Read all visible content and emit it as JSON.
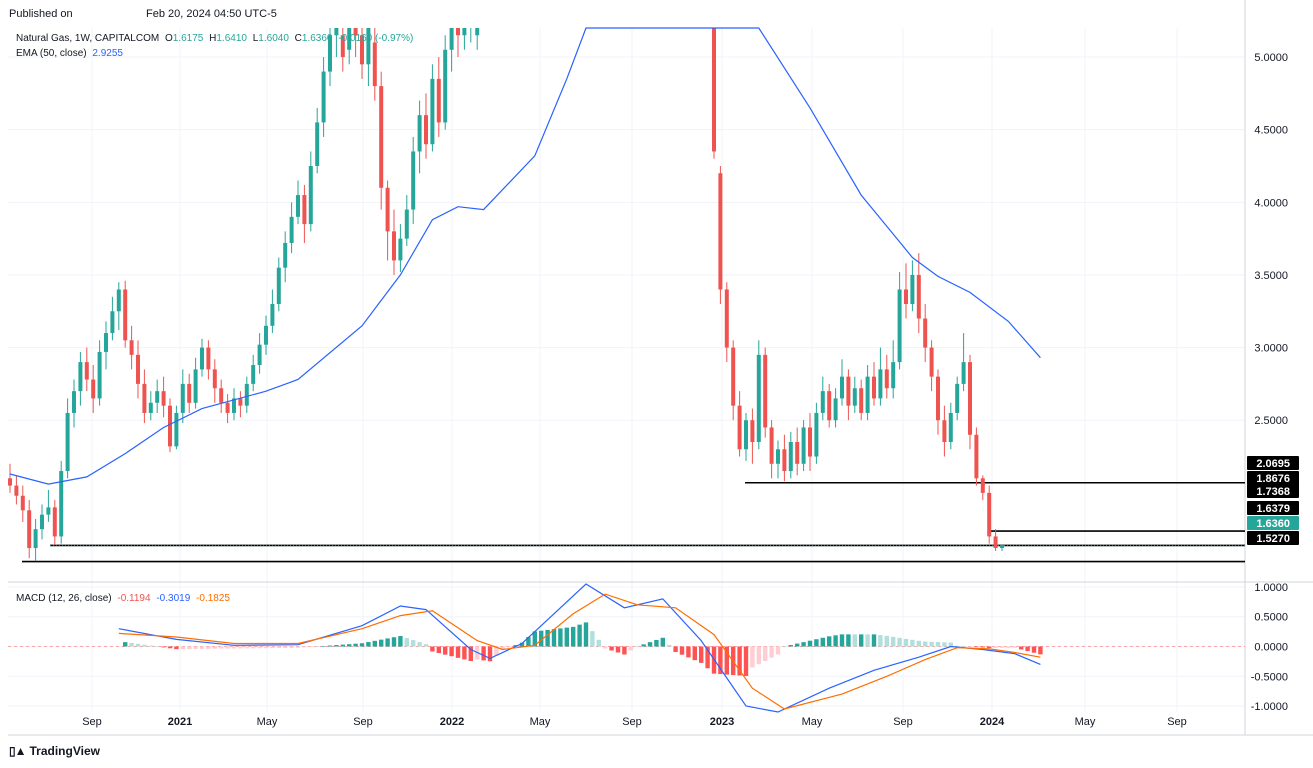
{
  "header": {
    "published_label": "Published on",
    "published_date": "Feb 20, 2024 04:50 UTC-5"
  },
  "legend": {
    "symbol": "Natural Gas, 1W, CAPITALCOM",
    "ohlc": {
      "O": "1.6175",
      "H": "1.6410",
      "L": "1.6040",
      "C": "1.6360",
      "chg": "-0.0160 (-0.97%)"
    },
    "ema_label": "EMA (50, close)",
    "ema_value": "2.9255",
    "macd_label": "MACD (12, 26, close)",
    "macd_hist": "-0.1194",
    "macd_line": "-0.3019",
    "macd_signal": "-0.1825"
  },
  "colors": {
    "up": "#26a69a",
    "down": "#ef5350",
    "ema": "#2962ff",
    "macd": "#2962ff",
    "signal": "#ff6d00",
    "hist_up_strong": "#26a69a",
    "hist_up_weak": "#b2dfdb",
    "hist_down_strong": "#ff5252",
    "hist_down_weak": "#ffcdd2"
  },
  "branding": {
    "name": "TradingView"
  },
  "chart_data": {
    "type": "candlestick",
    "title": "Natural Gas, 1W, CAPITALCOM",
    "price_axis_ticks": [
      "5.0000",
      "4.5000",
      "4.0000",
      "3.5000",
      "3.0000",
      "2.5000"
    ],
    "macd_axis_ticks": [
      "1.0000",
      "0.5000",
      "0.0000",
      "-0.5000",
      "-1.0000"
    ],
    "time_axis_ticks": [
      "Sep",
      "2021",
      "May",
      "Sep",
      "2022",
      "May",
      "Sep",
      "2023",
      "May",
      "Sep",
      "2024",
      "May",
      "Sep"
    ],
    "price_range": [
      1.4,
      5.2
    ],
    "macd_range": [
      -1.1,
      1.05
    ],
    "levels": [
      {
        "label": "2.0695",
        "value": 2.0695
      },
      {
        "label": "1.7368",
        "value": 1.7368
      },
      {
        "label": "1.6379",
        "value": 1.6379
      },
      {
        "label": "1.5270",
        "value": 1.527
      }
    ],
    "price_tags": [
      {
        "label": "2.0695",
        "value": 2.0695
      },
      {
        "label": "1.8676",
        "value": 1.8676
      },
      {
        "label": "1.7368",
        "value": 1.7368
      },
      {
        "label": "1.6379",
        "value": 1.6379
      },
      {
        "label": "1.6360",
        "value": 1.636,
        "current": true
      },
      {
        "label": "1.5270",
        "value": 1.527
      }
    ],
    "ema_series": [
      [
        0,
        2.13
      ],
      [
        6,
        2.06
      ],
      [
        12,
        2.11
      ],
      [
        18,
        2.27
      ],
      [
        24,
        2.45
      ],
      [
        30,
        2.58
      ],
      [
        40,
        2.7
      ],
      [
        45,
        2.78
      ],
      [
        55,
        3.15
      ],
      [
        61,
        3.5
      ],
      [
        66,
        3.88
      ],
      [
        70,
        3.97
      ],
      [
        74,
        3.95
      ],
      [
        82,
        4.32
      ],
      [
        87,
        4.85
      ],
      [
        90,
        5.2
      ],
      [
        117,
        5.2
      ],
      [
        125,
        4.65
      ],
      [
        133,
        4.05
      ],
      [
        141,
        3.62
      ],
      [
        145,
        3.49
      ],
      [
        150,
        3.38
      ],
      [
        156,
        3.18
      ],
      [
        161,
        2.93
      ]
    ],
    "macd_series": [
      [
        17,
        0.3
      ],
      [
        26,
        0.12
      ],
      [
        35,
        0.02
      ],
      [
        45,
        0.03
      ],
      [
        55,
        0.35
      ],
      [
        61,
        0.68
      ],
      [
        65,
        0.62
      ],
      [
        72,
        -0.05
      ],
      [
        75,
        -0.2
      ],
      [
        80,
        0.05
      ],
      [
        86,
        0.65
      ],
      [
        90,
        1.05
      ],
      [
        96,
        0.65
      ],
      [
        102,
        0.8
      ],
      [
        108,
        0.1
      ],
      [
        115,
        -1.0
      ],
      [
        120,
        -1.1
      ],
      [
        128,
        -0.7
      ],
      [
        135,
        -0.4
      ],
      [
        142,
        -0.18
      ],
      [
        147,
        0.0
      ],
      [
        152,
        -0.05
      ],
      [
        157,
        -0.12
      ],
      [
        161,
        -0.3
      ]
    ],
    "signal_series": [
      [
        17,
        0.22
      ],
      [
        26,
        0.16
      ],
      [
        35,
        0.05
      ],
      [
        45,
        0.05
      ],
      [
        55,
        0.3
      ],
      [
        61,
        0.52
      ],
      [
        66,
        0.6
      ],
      [
        73,
        0.1
      ],
      [
        77,
        -0.05
      ],
      [
        82,
        0.02
      ],
      [
        88,
        0.55
      ],
      [
        93,
        0.88
      ],
      [
        98,
        0.7
      ],
      [
        104,
        0.65
      ],
      [
        110,
        0.2
      ],
      [
        116,
        -0.7
      ],
      [
        121,
        -1.05
      ],
      [
        130,
        -0.8
      ],
      [
        137,
        -0.5
      ],
      [
        143,
        -0.22
      ],
      [
        148,
        -0.02
      ],
      [
        153,
        -0.04
      ],
      [
        157,
        -0.1
      ],
      [
        161,
        -0.18
      ]
    ],
    "candles": [
      [
        2.1,
        2.05,
        2.2,
        2.0
      ],
      [
        2.05,
        1.98,
        2.12,
        1.92
      ],
      [
        1.98,
        1.88,
        2.05,
        1.8
      ],
      [
        1.88,
        1.62,
        1.95,
        1.55
      ],
      [
        1.62,
        1.75,
        1.82,
        1.53
      ],
      [
        1.75,
        1.85,
        1.92,
        1.68
      ],
      [
        1.85,
        1.9,
        2.02,
        1.8
      ],
      [
        1.9,
        1.7,
        1.95,
        1.64
      ],
      [
        1.7,
        2.15,
        2.22,
        1.65
      ],
      [
        2.15,
        2.55,
        2.65,
        2.1
      ],
      [
        2.55,
        2.7,
        2.78,
        2.45
      ],
      [
        2.7,
        2.9,
        2.97,
        2.6
      ],
      [
        2.9,
        2.78,
        3.0,
        2.7
      ],
      [
        2.78,
        2.65,
        2.88,
        2.55
      ],
      [
        2.65,
        2.97,
        3.05,
        2.6
      ],
      [
        2.97,
        3.1,
        3.18,
        2.85
      ],
      [
        3.1,
        3.25,
        3.35,
        3.05
      ],
      [
        3.25,
        3.4,
        3.45,
        3.12
      ],
      [
        3.4,
        3.05,
        3.46,
        3.0
      ],
      [
        3.05,
        2.95,
        3.15,
        2.85
      ],
      [
        2.95,
        2.75,
        3.05,
        2.65
      ],
      [
        2.75,
        2.55,
        2.85,
        2.48
      ],
      [
        2.55,
        2.62,
        2.7,
        2.5
      ],
      [
        2.62,
        2.7,
        2.78,
        2.55
      ],
      [
        2.7,
        2.6,
        2.8,
        2.52
      ],
      [
        2.6,
        2.32,
        2.65,
        2.28
      ],
      [
        2.32,
        2.55,
        2.6,
        2.3
      ],
      [
        2.55,
        2.75,
        2.85,
        2.48
      ],
      [
        2.75,
        2.62,
        2.82,
        2.55
      ],
      [
        2.62,
        2.85,
        2.93,
        2.58
      ],
      [
        2.85,
        3.0,
        3.06,
        2.8
      ],
      [
        3.0,
        2.85,
        3.05,
        2.78
      ],
      [
        2.85,
        2.72,
        2.92,
        2.62
      ],
      [
        2.72,
        2.62,
        2.78,
        2.55
      ],
      [
        2.62,
        2.55,
        2.68,
        2.48
      ],
      [
        2.55,
        2.65,
        2.72,
        2.5
      ],
      [
        2.65,
        2.6,
        2.7,
        2.52
      ],
      [
        2.6,
        2.75,
        2.8,
        2.55
      ],
      [
        2.75,
        2.88,
        2.95,
        2.7
      ],
      [
        2.88,
        3.02,
        3.1,
        2.82
      ],
      [
        3.02,
        3.15,
        3.22,
        2.95
      ],
      [
        3.15,
        3.3,
        3.4,
        3.1
      ],
      [
        3.3,
        3.55,
        3.62,
        3.25
      ],
      [
        3.55,
        3.72,
        3.8,
        3.45
      ],
      [
        3.72,
        3.9,
        4.0,
        3.65
      ],
      [
        3.9,
        4.05,
        4.15,
        3.85
      ],
      [
        4.05,
        3.85,
        4.12,
        3.72
      ],
      [
        3.85,
        4.25,
        4.35,
        3.8
      ],
      [
        4.25,
        4.55,
        4.65,
        4.2
      ],
      [
        4.55,
        4.9,
        5.0,
        4.45
      ],
      [
        4.9,
        5.15,
        5.2,
        4.8
      ],
      [
        5.15,
        5.2,
        5.2,
        5.0
      ],
      [
        5.15,
        5.0,
        5.2,
        4.9
      ],
      [
        5.05,
        5.2,
        5.2,
        4.95
      ],
      [
        5.2,
        5.15,
        5.2,
        5.0
      ],
      [
        5.15,
        4.95,
        5.2,
        4.85
      ],
      [
        4.95,
        5.2,
        5.2,
        4.8
      ],
      [
        5.1,
        4.8,
        5.2,
        4.7
      ],
      [
        4.8,
        4.1,
        4.9,
        3.95
      ],
      [
        4.1,
        3.8,
        4.15,
        3.6
      ],
      [
        3.8,
        3.6,
        3.95,
        3.5
      ],
      [
        3.6,
        3.75,
        3.85,
        3.52
      ],
      [
        3.75,
        3.95,
        4.05,
        3.7
      ],
      [
        3.95,
        4.35,
        4.45,
        3.85
      ],
      [
        4.35,
        4.6,
        4.7,
        4.2
      ],
      [
        4.6,
        4.4,
        4.75,
        4.3
      ],
      [
        4.4,
        4.85,
        4.95,
        4.35
      ],
      [
        4.85,
        4.55,
        5.0,
        4.45
      ],
      [
        4.55,
        5.05,
        5.15,
        4.5
      ],
      [
        5.05,
        5.2,
        5.2,
        4.9
      ],
      [
        5.2,
        5.15,
        5.2,
        5.0
      ],
      [
        5.15,
        5.2,
        5.2,
        5.05
      ],
      [
        5.2,
        5.2,
        5.2,
        5.1
      ],
      [
        5.15,
        5.2,
        5.2,
        5.05
      ]
    ],
    "candles_late": [
      [
        5.2,
        4.35,
        5.2,
        4.3
      ],
      [
        4.2,
        3.4,
        4.25,
        3.3
      ],
      [
        3.4,
        3.0,
        3.45,
        2.9
      ],
      [
        3.0,
        2.6,
        3.05,
        2.5
      ],
      [
        2.6,
        2.3,
        2.7,
        2.25
      ],
      [
        2.3,
        2.5,
        2.55,
        2.22
      ],
      [
        2.5,
        2.35,
        2.58,
        2.2
      ],
      [
        2.35,
        2.95,
        3.05,
        2.3
      ],
      [
        2.95,
        2.45,
        3.0,
        2.38
      ],
      [
        2.45,
        2.2,
        2.5,
        2.1
      ],
      [
        2.2,
        2.3,
        2.36,
        2.1
      ],
      [
        2.3,
        2.15,
        2.4,
        2.08
      ],
      [
        2.15,
        2.35,
        2.42,
        2.1
      ],
      [
        2.35,
        2.2,
        2.45,
        2.12
      ],
      [
        2.2,
        2.45,
        2.5,
        2.15
      ],
      [
        2.45,
        2.25,
        2.55,
        2.15
      ],
      [
        2.25,
        2.55,
        2.62,
        2.2
      ],
      [
        2.55,
        2.7,
        2.8,
        2.5
      ],
      [
        2.7,
        2.5,
        2.75,
        2.45
      ],
      [
        2.5,
        2.65,
        2.72,
        2.45
      ],
      [
        2.65,
        2.8,
        2.92,
        2.6
      ],
      [
        2.8,
        2.6,
        2.85,
        2.5
      ],
      [
        2.6,
        2.72,
        2.8,
        2.55
      ],
      [
        2.72,
        2.55,
        2.78,
        2.5
      ],
      [
        2.55,
        2.8,
        2.88,
        2.5
      ],
      [
        2.8,
        2.65,
        2.9,
        2.6
      ],
      [
        2.65,
        2.85,
        3.0,
        2.6
      ],
      [
        2.85,
        2.72,
        2.95,
        2.65
      ],
      [
        2.72,
        2.9,
        3.05,
        2.65
      ],
      [
        2.9,
        3.4,
        3.52,
        2.85
      ],
      [
        3.4,
        3.3,
        3.58,
        3.2
      ],
      [
        3.3,
        3.5,
        3.6,
        3.25
      ],
      [
        3.5,
        3.2,
        3.65,
        3.1
      ],
      [
        3.2,
        3.0,
        3.3,
        2.9
      ],
      [
        3.0,
        2.8,
        3.05,
        2.7
      ],
      [
        2.8,
        2.5,
        2.85,
        2.4
      ],
      [
        2.5,
        2.35,
        2.6,
        2.25
      ],
      [
        2.35,
        2.55,
        2.62,
        2.3
      ],
      [
        2.55,
        2.75,
        2.8,
        2.5
      ],
      [
        2.75,
        2.9,
        3.1,
        2.7
      ],
      [
        2.9,
        2.4,
        2.95,
        2.3
      ],
      [
        2.4,
        2.1,
        2.45,
        2.05
      ],
      [
        2.1,
        2.0,
        2.12,
        1.95
      ],
      [
        2.0,
        1.7,
        2.05,
        1.65
      ],
      [
        1.7,
        1.62,
        1.75,
        1.6
      ],
      [
        1.62,
        1.64,
        1.64,
        1.6
      ]
    ]
  }
}
